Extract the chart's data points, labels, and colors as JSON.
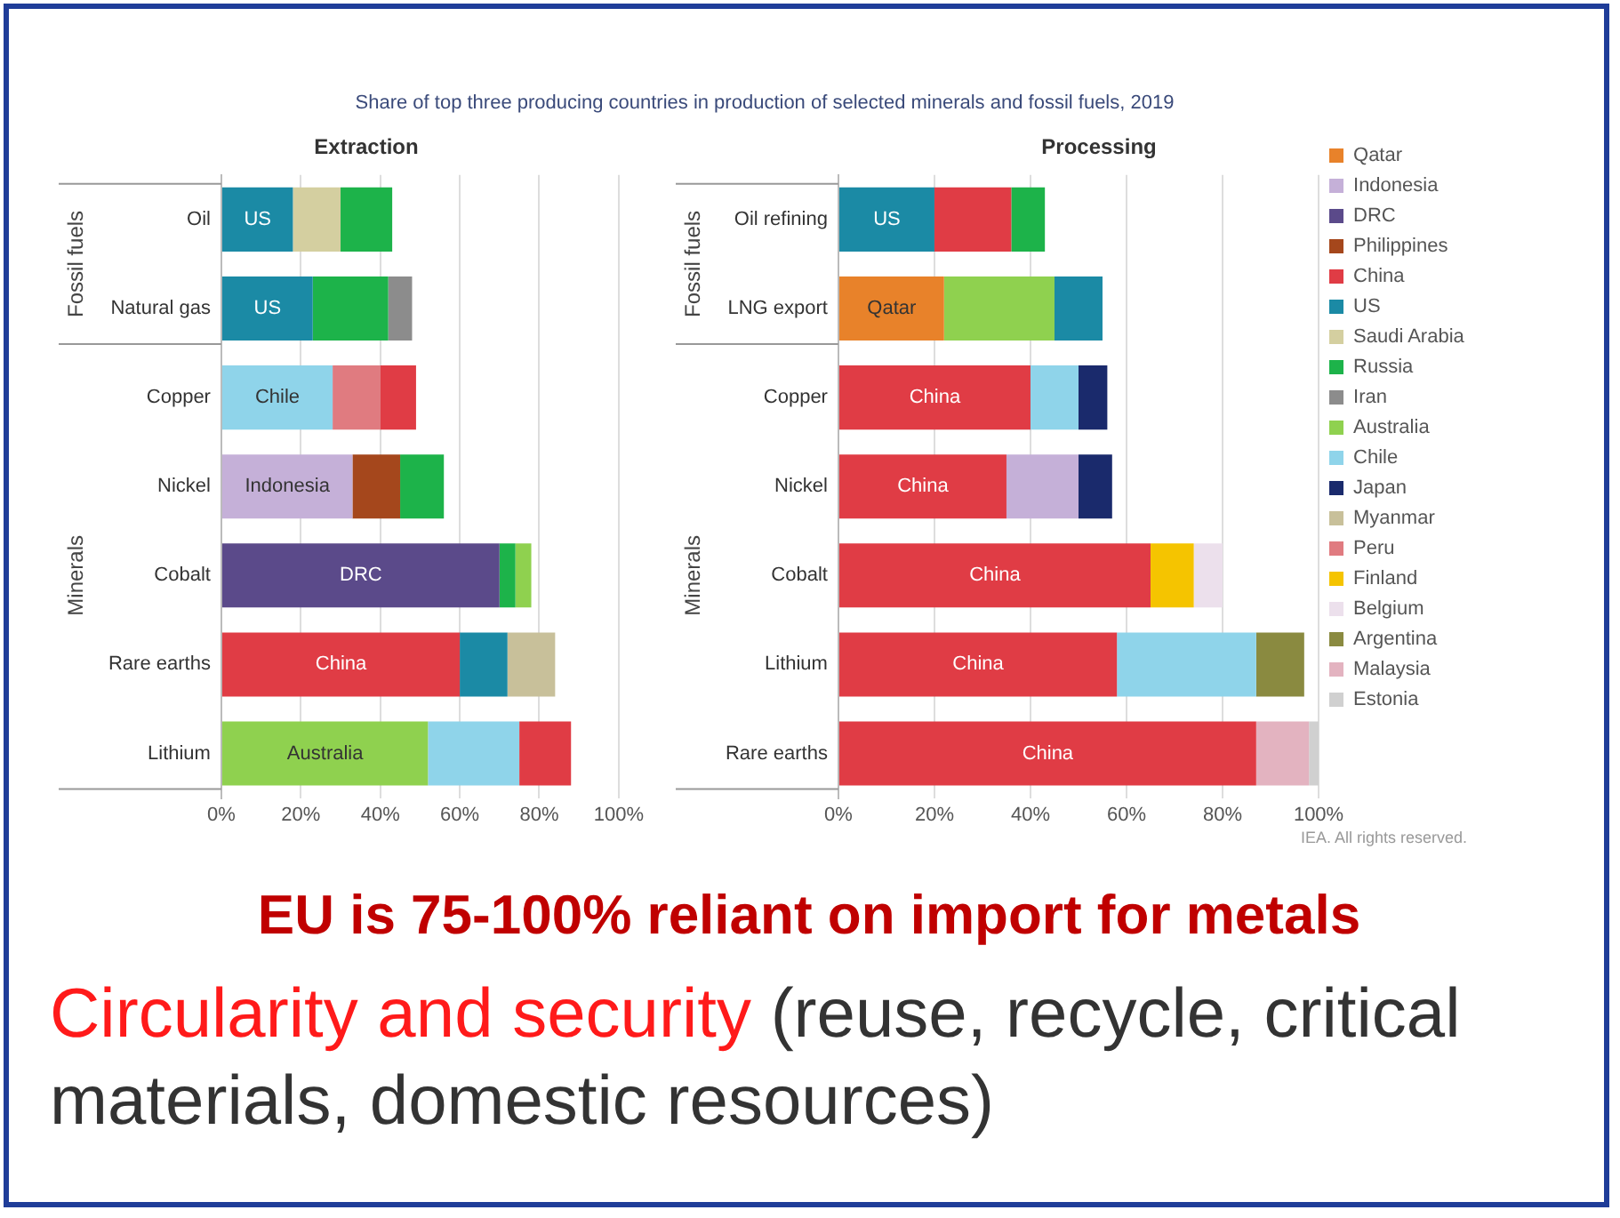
{
  "chart_data": [
    {
      "type": "bar",
      "orientation": "horizontal",
      "title": "Share of top three producing countries in production of selected minerals and fossil fuels, 2019",
      "subtitle": "Extraction",
      "categories": [
        "Oil",
        "Natural gas",
        "Copper",
        "Nickel",
        "Cobalt",
        "Rare earths",
        "Lithium"
      ],
      "xlim": [
        0,
        100
      ],
      "xticks": [
        {
          "value": 0,
          "label": "0%"
        },
        {
          "value": 20,
          "label": "20%"
        },
        {
          "value": 40,
          "label": "40%"
        },
        {
          "value": 60,
          "label": "60%"
        },
        {
          "value": 80,
          "label": "80%"
        },
        {
          "value": 100,
          "label": "100%"
        }
      ],
      "grid": "x",
      "annotations": [
        "Fossil fuels",
        "Minerals"
      ],
      "series": [
        {
          "color": "#c5b0d8",
          "values": [
            null,
            null,
            null,
            33,
            null,
            null,
            null
          ],
          "base": [
            null,
            null,
            null,
            0,
            null,
            null,
            null
          ],
          "value_labels": [
            null,
            null,
            null,
            "Indonesia",
            null,
            null,
            null
          ]
        },
        {
          "color": "#5b4a8a",
          "values": [
            null,
            null,
            null,
            null,
            70,
            null,
            null
          ],
          "base": [
            null,
            null,
            null,
            null,
            0,
            null,
            null
          ],
          "value_labels": [
            null,
            null,
            null,
            null,
            "DRC",
            null,
            null
          ]
        },
        {
          "color": "#a5471c",
          "values": [
            null,
            null,
            null,
            12,
            null,
            null,
            null
          ],
          "base": [
            null,
            null,
            null,
            33,
            null,
            null,
            null
          ]
        },
        {
          "color": "#e03c45",
          "values": [
            null,
            null,
            9,
            null,
            null,
            60,
            13
          ],
          "base": [
            null,
            null,
            40,
            null,
            null,
            0,
            75
          ],
          "value_labels": [
            null,
            null,
            null,
            null,
            null,
            "China",
            null
          ]
        },
        {
          "color": "#1b8aa5",
          "values": [
            18,
            23,
            null,
            null,
            null,
            12,
            null
          ],
          "base": [
            0,
            0,
            null,
            null,
            null,
            60,
            null
          ],
          "value_labels": [
            "US",
            "US",
            null,
            null,
            null,
            null,
            null
          ]
        },
        {
          "color": "#d4cfa0",
          "values": [
            12,
            null,
            null,
            null,
            null,
            null,
            null
          ],
          "base": [
            18,
            null,
            null,
            null,
            null,
            null,
            null
          ]
        },
        {
          "color": "#1db34a",
          "values": [
            13,
            19,
            null,
            11,
            4,
            null,
            null
          ],
          "base": [
            30,
            23,
            null,
            45,
            70,
            null,
            null
          ]
        },
        {
          "color": "#8c8c8c",
          "values": [
            null,
            6,
            null,
            null,
            null,
            null,
            null
          ],
          "base": [
            null,
            42,
            null,
            null,
            null,
            null,
            null
          ]
        },
        {
          "color": "#8fd14f",
          "values": [
            null,
            null,
            null,
            null,
            4,
            null,
            52
          ],
          "base": [
            null,
            null,
            null,
            null,
            74,
            null,
            0
          ],
          "value_labels": [
            null,
            null,
            null,
            null,
            null,
            null,
            "Australia"
          ]
        },
        {
          "color": "#8fd4ea",
          "values": [
            null,
            null,
            28,
            null,
            null,
            null,
            23
          ],
          "base": [
            null,
            null,
            0,
            null,
            null,
            null,
            52
          ],
          "value_labels": [
            null,
            null,
            "Chile",
            null,
            null,
            null,
            null
          ]
        },
        {
          "color": "#c8c09a",
          "values": [
            null,
            null,
            null,
            null,
            null,
            12,
            null
          ],
          "base": [
            null,
            null,
            null,
            null,
            null,
            72,
            null
          ]
        },
        {
          "color": "#e07b80",
          "values": [
            null,
            null,
            12,
            null,
            null,
            null,
            null
          ],
          "base": [
            null,
            null,
            28,
            null,
            null,
            null,
            null
          ]
        }
      ]
    },
    {
      "type": "bar",
      "orientation": "horizontal",
      "subtitle": "Processing",
      "categories": [
        "Oil refining",
        "LNG export",
        "Copper",
        "Nickel",
        "Cobalt",
        "Lithium",
        "Rare earths"
      ],
      "xlim": [
        0,
        100
      ],
      "xticks": [
        {
          "value": 0,
          "label": "0%"
        },
        {
          "value": 20,
          "label": "20%"
        },
        {
          "value": 40,
          "label": "40%"
        },
        {
          "value": 60,
          "label": "60%"
        },
        {
          "value": 80,
          "label": "80%"
        },
        {
          "value": 100,
          "label": "100%"
        }
      ],
      "grid": "x",
      "legend": "right",
      "annotations": [
        "Fossil fuels",
        "Minerals",
        "IEA. All rights reserved.",
        "EU is 75-100% reliant on import for metals",
        "Circularity and security",
        "(reuse, recycle, critical materials, domestic resources)"
      ],
      "series": [
        {
          "name": "Qatar",
          "color": "#e8822a",
          "values": [
            null,
            22,
            null,
            null,
            null,
            null,
            null
          ],
          "base": [
            null,
            0,
            null,
            null,
            null,
            null,
            null
          ],
          "value_labels": [
            null,
            "Qatar",
            null,
            null,
            null,
            null,
            null
          ]
        },
        {
          "name": "Indonesia",
          "color": "#c5b0d8",
          "values": [
            null,
            null,
            null,
            15,
            null,
            null,
            null
          ],
          "base": [
            null,
            null,
            null,
            35,
            null,
            null,
            null
          ]
        },
        {
          "name": "DRC",
          "color": "#5b4a8a",
          "values": [
            null,
            null,
            null,
            null,
            null,
            null,
            null
          ]
        },
        {
          "name": "Philippines",
          "color": "#a5471c",
          "values": [
            null,
            null,
            null,
            null,
            null,
            null,
            null
          ]
        },
        {
          "name": "China",
          "color": "#e03c45",
          "values": [
            16,
            null,
            40,
            35,
            65,
            58,
            87
          ],
          "base": [
            20,
            null,
            0,
            0,
            0,
            0,
            0
          ],
          "value_labels": [
            null,
            null,
            "China",
            "China",
            "China",
            "China",
            "China"
          ]
        },
        {
          "name": "US",
          "color": "#1b8aa5",
          "values": [
            20,
            10,
            null,
            null,
            null,
            null,
            null
          ],
          "base": [
            0,
            45,
            null,
            null,
            null,
            null,
            null
          ],
          "value_labels": [
            "US",
            null,
            null,
            null,
            null,
            null,
            null
          ]
        },
        {
          "name": "Saudi Arabia",
          "color": "#d4cfa0",
          "values": [
            null,
            null,
            null,
            null,
            null,
            null,
            null
          ]
        },
        {
          "name": "Russia",
          "color": "#1db34a",
          "values": [
            7,
            null,
            null,
            null,
            null,
            null,
            null
          ],
          "base": [
            36,
            null,
            null,
            null,
            null,
            null,
            null
          ]
        },
        {
          "name": "Iran",
          "color": "#8c8c8c",
          "values": [
            null,
            null,
            null,
            null,
            null,
            null,
            null
          ]
        },
        {
          "name": "Australia",
          "color": "#8fd14f",
          "values": [
            null,
            23,
            null,
            null,
            null,
            null,
            null
          ],
          "base": [
            null,
            22,
            null,
            null,
            null,
            null,
            null
          ]
        },
        {
          "name": "Chile",
          "color": "#8fd4ea",
          "values": [
            null,
            null,
            10,
            null,
            null,
            29,
            null
          ],
          "base": [
            null,
            null,
            40,
            null,
            null,
            58,
            null
          ]
        },
        {
          "name": "Japan",
          "color": "#1a2a6c",
          "values": [
            null,
            null,
            6,
            7,
            null,
            null,
            null
          ],
          "base": [
            null,
            null,
            50,
            50,
            null,
            null,
            null
          ]
        },
        {
          "name": "Myanmar",
          "color": "#c8c09a",
          "values": [
            null,
            null,
            null,
            null,
            null,
            null,
            null
          ]
        },
        {
          "name": "Peru",
          "color": "#e07b80",
          "values": [
            null,
            null,
            null,
            null,
            null,
            null,
            null
          ]
        },
        {
          "name": "Finland",
          "color": "#f5c400",
          "values": [
            null,
            null,
            null,
            null,
            9,
            null,
            null
          ],
          "base": [
            null,
            null,
            null,
            null,
            65,
            null,
            null
          ]
        },
        {
          "name": "Belgium",
          "color": "#ece0ec",
          "values": [
            null,
            null,
            null,
            null,
            6,
            null,
            null
          ],
          "base": [
            null,
            null,
            null,
            null,
            74,
            null,
            null
          ]
        },
        {
          "name": "Argentina",
          "color": "#8a8a40",
          "values": [
            null,
            null,
            null,
            null,
            null,
            10,
            null
          ],
          "base": [
            null,
            null,
            null,
            null,
            null,
            87,
            null
          ]
        },
        {
          "name": "Malaysia",
          "color": "#e3b3c0",
          "values": [
            null,
            null,
            null,
            null,
            null,
            null,
            11
          ],
          "base": [
            null,
            null,
            null,
            null,
            null,
            null,
            87
          ]
        },
        {
          "name": "Estonia",
          "color": "#d0d0d0",
          "values": [
            null,
            null,
            null,
            null,
            null,
            null,
            2
          ],
          "base": [
            null,
            null,
            null,
            null,
            null,
            null,
            98
          ]
        }
      ]
    }
  ]
}
